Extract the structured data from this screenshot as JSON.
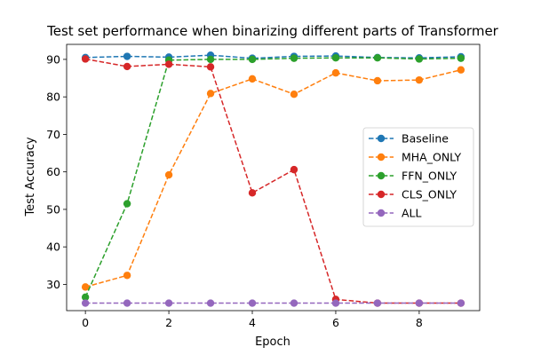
{
  "chart_data": {
    "type": "line",
    "title": "Test set performance when binarizing different parts of Transformer",
    "xlabel": "Epoch",
    "ylabel": "Test Accuracy",
    "xlim": [
      -0.45,
      9.45
    ],
    "ylim": [
      23,
      94
    ],
    "x_ticks": [
      0,
      2,
      4,
      6,
      8
    ],
    "y_ticks": [
      30,
      40,
      50,
      60,
      70,
      80,
      90
    ],
    "x": [
      0,
      1,
      2,
      3,
      4,
      5,
      6,
      7,
      8,
      9
    ],
    "line_style": "dashed",
    "marker": "circle",
    "grid": false,
    "legend_position": "center-right",
    "series": [
      {
        "name": "Baseline",
        "color": "#1f77b4",
        "values": [
          90.5,
          90.8,
          90.6,
          91.1,
          90.3,
          90.8,
          90.9,
          90.5,
          90.4,
          90.7
        ]
      },
      {
        "name": "MHA_ONLY",
        "color": "#ff7f0e",
        "values": [
          29.3,
          32.4,
          59.2,
          80.9,
          84.8,
          80.7,
          86.4,
          84.3,
          84.5,
          87.2
        ]
      },
      {
        "name": "FFN_ONLY",
        "color": "#2ca02c",
        "values": [
          26.6,
          51.5,
          89.8,
          90.0,
          90.0,
          90.3,
          90.4,
          90.4,
          90.1,
          90.3
        ]
      },
      {
        "name": "CLS_ONLY",
        "color": "#d62728",
        "values": [
          90.1,
          88.1,
          88.7,
          88.0,
          54.4,
          60.6,
          26.0,
          25.0,
          25.0,
          25.0
        ]
      },
      {
        "name": "ALL",
        "color": "#9467bd",
        "values": [
          25.0,
          25.0,
          25.0,
          25.0,
          25.0,
          25.0,
          25.0,
          25.0,
          25.0,
          25.0
        ]
      }
    ]
  }
}
